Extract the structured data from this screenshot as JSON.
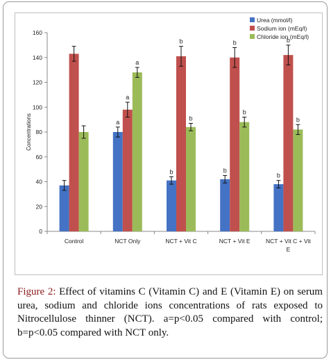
{
  "chart_data": {
    "type": "bar",
    "categories": [
      "Control",
      "NCT Only",
      "NCT + Vit C",
      "NCT + Vit E",
      "NCT + Vit C + Vit E"
    ],
    "category_lines": [
      [
        "Control"
      ],
      [
        "NCT Only"
      ],
      [
        "NCT + Vit C"
      ],
      [
        "NCT + Vit E"
      ],
      [
        "NCT + Vit C + Vit",
        "E"
      ]
    ],
    "series": [
      {
        "name": "Urea (mmol/l)",
        "color": "#4472c4",
        "values": [
          37,
          80,
          41,
          42,
          38
        ],
        "errors": [
          4,
          4,
          3,
          3,
          3
        ],
        "labels": [
          "",
          "a",
          "b",
          "b",
          "b"
        ]
      },
      {
        "name": "Sodium ion (mEq/l)",
        "color": "#c0504d",
        "values": [
          143,
          98,
          141,
          140,
          142
        ],
        "errors": [
          6,
          6,
          8,
          8,
          8
        ],
        "labels": [
          "",
          "a",
          "b",
          "b",
          "b"
        ]
      },
      {
        "name": "Chloride ion (mEq/l)",
        "color": "#9bbb59",
        "values": [
          80,
          128,
          84,
          88,
          82
        ],
        "errors": [
          5,
          4,
          3,
          4,
          4
        ],
        "labels": [
          "",
          "a",
          "b",
          "b",
          "b"
        ]
      }
    ],
    "ylabel": "Concentrations",
    "xlabel": "",
    "ylim": [
      0,
      160
    ],
    "yticks": [
      0,
      20,
      40,
      60,
      80,
      100,
      120,
      140,
      160
    ],
    "grid": false,
    "legend_position": "top-right"
  },
  "caption": {
    "label": "Figure 2:",
    "text": " Effect of vitamins C (Vitamin C) and E (Vitamin E) on serum urea, sodium and chloride ions concentrations of rats exposed to Nitrocellulose thinner (NCT). a=p<0.05 compared with control; b=p<0.05 compared with NCT only."
  }
}
